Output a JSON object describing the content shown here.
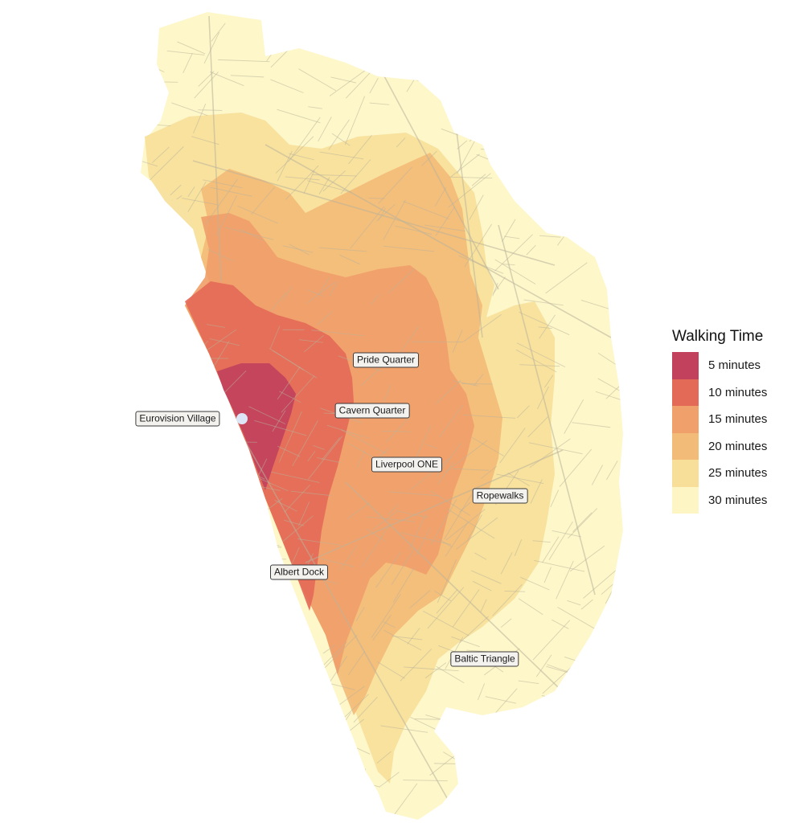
{
  "map": {
    "description_colors": {
      "background": "#ffffff",
      "street_line": "#b9b39a",
      "origin_marker": "#dde6f7"
    },
    "origin": {
      "name": "Eurovision Village"
    }
  },
  "labels": [
    {
      "id": "eurovision-village",
      "text": "Eurovision Village"
    },
    {
      "id": "pride-quarter",
      "text": "Pride Quarter"
    },
    {
      "id": "cavern-quarter",
      "text": "Cavern Quarter"
    },
    {
      "id": "liverpool-one",
      "text": "Liverpool ONE"
    },
    {
      "id": "ropewalks",
      "text": "Ropewalks"
    },
    {
      "id": "albert-dock",
      "text": "Albert Dock"
    },
    {
      "id": "baltic-triangle",
      "text": "Baltic Triangle"
    }
  ],
  "legend": {
    "title": "Walking Time",
    "items": [
      {
        "label": "5 minutes",
        "color": "#c2425d"
      },
      {
        "label": "10 minutes",
        "color": "#e46a58"
      },
      {
        "label": "15 minutes",
        "color": "#f0a06a"
      },
      {
        "label": "20 minutes",
        "color": "#f3bb78"
      },
      {
        "label": "25 minutes",
        "color": "#f7df9a"
      },
      {
        "label": "30 minutes",
        "color": "#fdf6c4"
      }
    ]
  }
}
